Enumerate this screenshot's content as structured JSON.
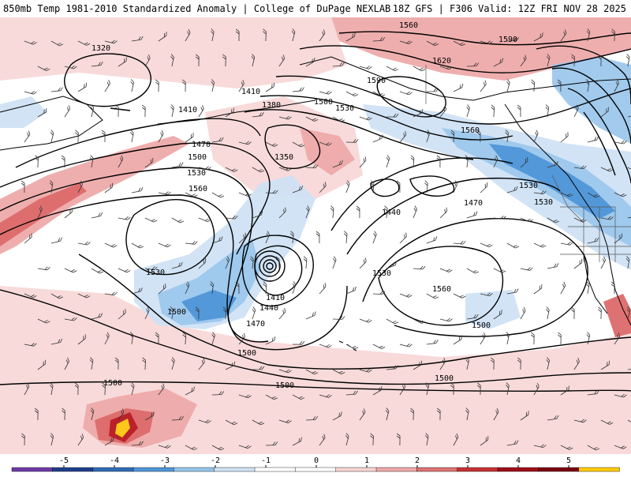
{
  "header": {
    "left": "850mb Temp 1981-2010 Standardized Anomaly | College of DuPage NEXLAB",
    "right": "18Z GFS | F306 Valid: 12Z FRI NOV 28 2025"
  },
  "contour_labels": [
    "1320",
    "1410",
    "1380",
    "1410",
    "1500",
    "1530",
    "1590",
    "1560",
    "1590",
    "1620",
    "1470",
    "1500",
    "1530",
    "1560",
    "1350",
    "1440",
    "1470",
    "1560",
    "1530",
    "1530",
    "1530",
    "1500",
    "1410",
    "1440",
    "1470",
    "1560",
    "1530",
    "1500",
    "1500",
    "1500",
    "1500",
    "1500"
  ],
  "colorbar": {
    "ticks": [
      "-5",
      "-4",
      "-3",
      "-2",
      "-1",
      "0",
      "1",
      "2",
      "3",
      "4",
      "5"
    ],
    "colors": [
      "#6f3aa6",
      "#1f3f8c",
      "#2f6bb8",
      "#4f96d8",
      "#96c4ea",
      "#cfe2f4",
      "#ffffff",
      "#ffffff",
      "#f7d4d4",
      "#eda8a8",
      "#de7272",
      "#c83232",
      "#a00e18",
      "#7a0010",
      "#ffcc00"
    ]
  },
  "anomaly_palette": {
    "pos1": "#f8d8d8",
    "pos2": "#eeaaaa",
    "pos3": "#dc6a6a",
    "pos4": "#b81c26",
    "pos5": "#ffd21a",
    "neg1": "#cfe2f4",
    "neg2": "#9cc7ec",
    "neg3": "#4f96d8"
  }
}
